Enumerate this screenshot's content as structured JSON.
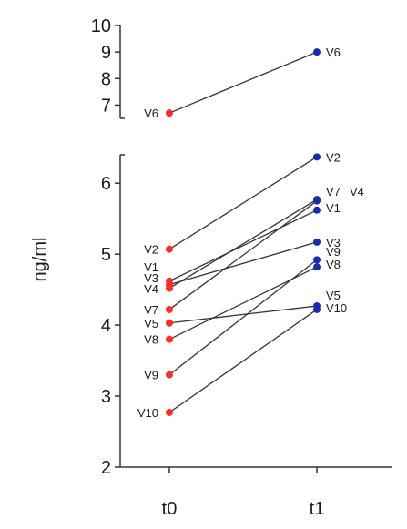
{
  "chart_data": {
    "type": "line",
    "ylabel": "ng/ml",
    "categories": [
      "t0",
      "t1"
    ],
    "upper_panel": {
      "ylim": [
        6.5,
        10
      ],
      "ticks": [
        7,
        8,
        9,
        10
      ]
    },
    "lower_panel": {
      "ylim": [
        2,
        6.4
      ],
      "ticks": [
        2,
        3,
        4,
        5,
        6
      ]
    },
    "colors": {
      "t0": "#ff2a2a",
      "t1": "#1c2ab0",
      "line": "#333333"
    },
    "series": [
      {
        "label_t0": "V6",
        "label_t1": "V6",
        "values": [
          6.7,
          9.0
        ],
        "panel": "upper"
      },
      {
        "label_t0": "V2",
        "label_t1": "V2",
        "values": [
          5.07,
          6.37
        ],
        "panel": "lower"
      },
      {
        "label_t0": "V1",
        "label_t1": "V1",
        "values": [
          4.62,
          5.62
        ],
        "panel": "lower"
      },
      {
        "label_t0": "V3",
        "label_t1": "V3",
        "values": [
          4.57,
          5.17
        ],
        "panel": "lower"
      },
      {
        "label_t0": "V4",
        "label_t1": "V4",
        "values": [
          4.52,
          5.77
        ],
        "panel": "lower"
      },
      {
        "label_t0": "V7",
        "label_t1": "V7",
        "values": [
          4.22,
          5.75
        ],
        "panel": "lower"
      },
      {
        "label_t0": "V5",
        "label_t1": "V5",
        "values": [
          4.03,
          4.27
        ],
        "panel": "lower"
      },
      {
        "label_t0": "V8",
        "label_t1": "V8",
        "values": [
          3.8,
          4.82
        ],
        "panel": "lower"
      },
      {
        "label_t0": "V9",
        "label_t1": "V9",
        "values": [
          3.3,
          4.92
        ],
        "panel": "lower"
      },
      {
        "label_t0": "V10",
        "label_t1": "V10",
        "values": [
          2.77,
          4.22
        ],
        "panel": "lower"
      }
    ]
  }
}
